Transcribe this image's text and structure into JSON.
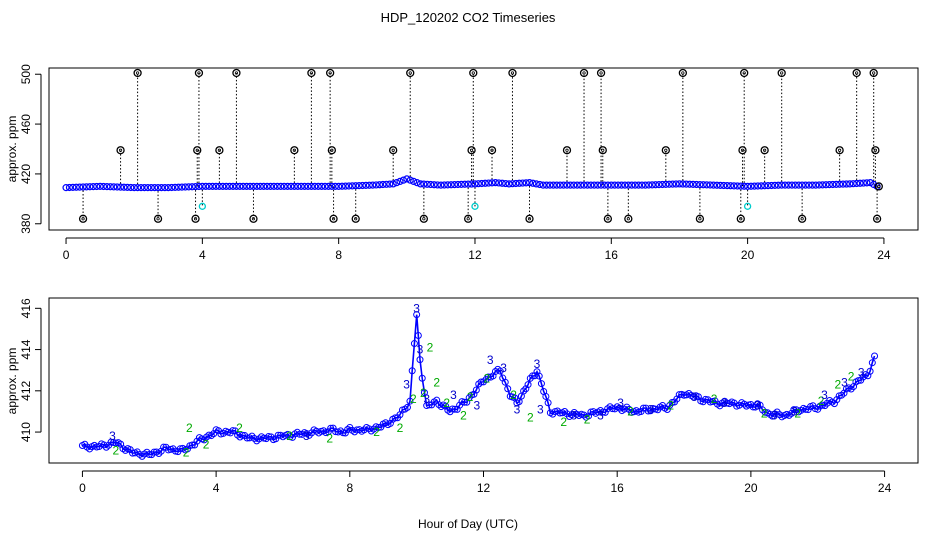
{
  "chart_data": [
    {
      "type": "scatter",
      "title": "HDP_120202  CO2 Timeseries",
      "xlabel": "",
      "ylabel": "approx. ppm",
      "xlim": [
        -0.5,
        25
      ],
      "ylim": [
        375,
        505
      ],
      "xticks": [
        0,
        4,
        8,
        12,
        16,
        20,
        24
      ],
      "yticks": [
        380,
        420,
        460,
        500
      ],
      "baseline": {
        "name": "CO2 (blue)",
        "color": "#0000ff",
        "x": [
          0,
          1,
          2,
          3,
          4,
          5,
          6,
          7,
          8,
          9,
          9.6,
          10.0,
          10.4,
          11,
          12,
          12.6,
          13,
          13.6,
          14,
          15,
          16,
          17,
          18,
          19,
          20,
          21,
          22,
          23,
          23.6,
          23.8
        ],
        "y": [
          409,
          410,
          409,
          409,
          410,
          410,
          410,
          410,
          410,
          411,
          412,
          416,
          412,
          411,
          412,
          413,
          412,
          413,
          411,
          411,
          411,
          411,
          412,
          411,
          410,
          411,
          411,
          412,
          413,
          410
        ]
      },
      "spikes": {
        "name": "spikes (black)",
        "color": "#000000",
        "x": [
          0.5,
          1.6,
          2.1,
          2.7,
          3.8,
          3.85,
          3.9,
          4.5,
          5.0,
          5.5,
          6.7,
          7.2,
          7.75,
          7.8,
          7.85,
          8.5,
          9.6,
          10.1,
          10.5,
          11.8,
          11.9,
          11.95,
          12.5,
          13.1,
          13.6,
          14.7,
          15.2,
          15.7,
          15.75,
          15.9,
          16.5,
          17.6,
          18.1,
          18.6,
          19.8,
          19.85,
          19.9,
          20.5,
          21.0,
          21.6,
          22.7,
          23.2,
          23.7,
          23.75,
          23.8,
          23.85
        ],
        "y": [
          384,
          439,
          501,
          384,
          384,
          439,
          501,
          439,
          501,
          384,
          439,
          501,
          501,
          439,
          384,
          384,
          439,
          501,
          384,
          384,
          439,
          501,
          439,
          501,
          384,
          439,
          501,
          501,
          439,
          384,
          384,
          439,
          501,
          384,
          384,
          439,
          501,
          439,
          501,
          384,
          439,
          501,
          501,
          439,
          384,
          410
        ]
      },
      "flagged": {
        "name": "flagged (cyan)",
        "color": "#00cccc",
        "x": [
          4.0,
          12.0,
          20.0
        ],
        "y": [
          394,
          394,
          394
        ]
      }
    },
    {
      "type": "scatter",
      "title": "",
      "xlabel": "Hour of Day (UTC)",
      "ylabel": "approx. ppm",
      "xlim": [
        -1,
        25
      ],
      "ylim": [
        408.5,
        416.5
      ],
      "xticks": [
        0,
        4,
        8,
        12,
        16,
        20,
        24
      ],
      "yticks": [
        410,
        412,
        414,
        416
      ],
      "line": {
        "name": "CO2 (blue line)",
        "color": "#0000ff",
        "x": [
          0,
          0.5,
          1,
          1.5,
          2,
          2.5,
          3,
          3.5,
          4,
          4.5,
          5,
          5.5,
          6,
          6.5,
          7,
          7.5,
          7.8,
          8,
          8.5,
          9,
          9.5,
          9.8,
          10.0,
          10.1,
          10.3,
          10.6,
          11,
          11.5,
          12,
          12.5,
          12.8,
          13,
          13.4,
          13.6,
          14,
          14.5,
          15,
          15.5,
          16,
          16.5,
          17,
          17.5,
          18,
          18.5,
          19,
          19.5,
          19.8,
          20.2,
          20.5,
          21,
          21.5,
          22,
          22.5,
          23,
          23.5,
          23.7
        ],
        "y": [
          409.3,
          409.3,
          409.5,
          409.0,
          408.9,
          409.2,
          409.1,
          409.6,
          410.0,
          410.0,
          409.7,
          409.7,
          409.8,
          409.9,
          410.0,
          410.1,
          410.0,
          410.1,
          410.1,
          410.3,
          410.8,
          411.5,
          415.7,
          413.5,
          411.2,
          411.5,
          411.0,
          411.5,
          412.5,
          413.0,
          411.8,
          411.4,
          412.5,
          413.0,
          411.0,
          410.9,
          410.8,
          411.0,
          411.2,
          411.0,
          411.1,
          411.2,
          411.9,
          411.6,
          411.4,
          411.4,
          411.3,
          411.3,
          410.9,
          410.8,
          411.1,
          411.2,
          411.5,
          412.2,
          412.8,
          413.6
        ]
      },
      "labels_3": {
        "name": "points labelled 3 (blue)",
        "color": "#0000cc",
        "text": "3",
        "x": [
          0.9,
          6.7,
          9.7,
          10.0,
          10.1,
          10.3,
          11.1,
          11.8,
          12.2,
          12.6,
          13.0,
          13.6,
          13.7,
          14.7,
          15.5,
          16.1,
          17.0,
          18.3,
          19.2,
          20.2,
          20.7,
          21.3,
          22.2,
          22.8,
          23.3
        ],
        "y": [
          409.8,
          409.8,
          412.3,
          416.0,
          414.0,
          411.6,
          411.8,
          411.3,
          413.5,
          413.1,
          411.1,
          413.3,
          411.1,
          410.8,
          410.8,
          411.4,
          411.1,
          411.7,
          411.4,
          411.3,
          410.8,
          411.0,
          411.8,
          412.4,
          412.9
        ]
      },
      "labels_2": {
        "name": "points labelled 2 (green)",
        "color": "#00aa00",
        "text": "2",
        "x": [
          1.0,
          3.1,
          3.2,
          3.7,
          4.7,
          6.2,
          7.4,
          8.8,
          9.5,
          9.9,
          10.2,
          10.4,
          10.6,
          10.9,
          11.4,
          11.6,
          12.1,
          12.9,
          13.4,
          14.4,
          15.1,
          16.4,
          17.6,
          18.9,
          20.4,
          21.4,
          22.1,
          22.6,
          23.0
        ],
        "y": [
          409.1,
          409.0,
          410.2,
          409.4,
          410.2,
          409.8,
          409.7,
          410.0,
          410.2,
          411.6,
          411.9,
          414.1,
          412.4,
          411.4,
          410.8,
          411.7,
          412.6,
          411.8,
          410.7,
          410.5,
          410.6,
          411.0,
          411.3,
          411.6,
          410.9,
          410.9,
          411.5,
          412.3,
          412.7
        ]
      }
    }
  ]
}
